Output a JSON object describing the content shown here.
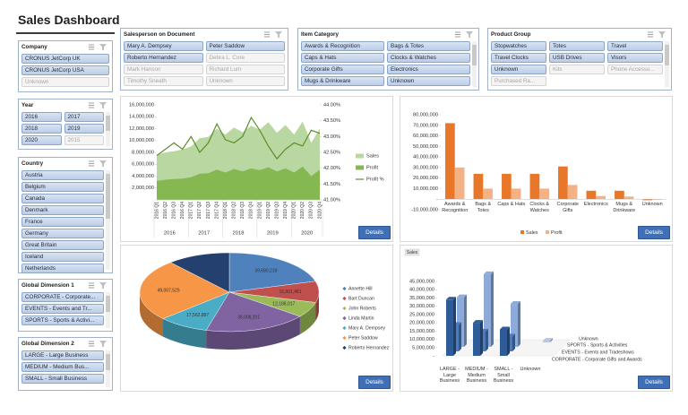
{
  "header": {
    "title": "Sales Dashboard"
  },
  "slicers": [
    {
      "title": "Company",
      "items": [
        {
          "text": "CRONUS JetCorp UK",
          "active": true
        },
        {
          "text": "CRONUS JetCorp USA",
          "active": true
        },
        {
          "text": "Unknown",
          "active": false
        }
      ]
    },
    {
      "title": "Year",
      "items": [
        {
          "text": "2016",
          "active": true
        },
        {
          "text": "2017",
          "active": true
        },
        {
          "text": "2018",
          "active": true
        },
        {
          "text": "2019",
          "active": true
        },
        {
          "text": "2020",
          "active": true
        },
        {
          "text": "2015",
          "active": false
        }
      ]
    },
    {
      "title": "Country",
      "items": [
        {
          "text": "Austria",
          "active": true
        },
        {
          "text": "Belgium",
          "active": true
        },
        {
          "text": "Canada",
          "active": true
        },
        {
          "text": "Denmark",
          "active": true
        },
        {
          "text": "France",
          "active": true
        },
        {
          "text": "Germany",
          "active": true
        },
        {
          "text": "Great Britain",
          "active": true
        },
        {
          "text": "Iceland",
          "active": true
        },
        {
          "text": "Netherlands",
          "active": true
        }
      ]
    },
    {
      "title": "Global Dimension 1",
      "items": [
        {
          "text": "CORPORATE - Corporate...",
          "active": true
        },
        {
          "text": "EVENTS - Events and Tr...",
          "active": true
        },
        {
          "text": "SPORTS - Sports & Activi...",
          "active": true
        }
      ]
    },
    {
      "title": "Global Dimension 2",
      "items": [
        {
          "text": "LARGE - Large Business",
          "active": true
        },
        {
          "text": "MEDIUM - Medium Bus...",
          "active": true
        },
        {
          "text": "SMALL - Small Business",
          "active": true
        }
      ]
    },
    {
      "title": "Salesperson on Document",
      "items": [
        {
          "text": "Mary A. Dempsey",
          "active": true
        },
        {
          "text": "Peter Saddow",
          "active": true
        },
        {
          "text": "Roberto Hernandez",
          "active": true
        },
        {
          "text": "Debra L. Core",
          "active": false
        },
        {
          "text": "Mark Hanson",
          "active": false
        },
        {
          "text": "Richard Lum",
          "active": false
        },
        {
          "text": "Timothy Sneath",
          "active": false
        },
        {
          "text": "Unknown",
          "active": false
        }
      ]
    },
    {
      "title": "Item Category",
      "items": [
        {
          "text": "Awards & Recognition",
          "active": true
        },
        {
          "text": "Bags & Totes",
          "active": true
        },
        {
          "text": "Caps & Hats",
          "active": true
        },
        {
          "text": "Clocks & Watches",
          "active": true
        },
        {
          "text": "Corporate Gifts",
          "active": true
        },
        {
          "text": "Electronics",
          "active": true
        },
        {
          "text": "Mugs & Drinkware",
          "active": true
        },
        {
          "text": "Unknown",
          "active": true
        }
      ]
    },
    {
      "title": "Product Group",
      "items": [
        {
          "text": "Stopwatches",
          "active": true
        },
        {
          "text": "Totes",
          "active": true
        },
        {
          "text": "Travel",
          "active": true
        },
        {
          "text": "Travel Clocks",
          "active": true
        },
        {
          "text": "USB Drives",
          "active": true
        },
        {
          "text": "Visors",
          "active": true
        },
        {
          "text": "Unknown",
          "active": true
        },
        {
          "text": "Kits",
          "active": false
        },
        {
          "text": "Phone Accesso...",
          "active": false
        },
        {
          "text": "Purchased Ra...",
          "active": false
        }
      ]
    }
  ],
  "chart_data": [
    {
      "type": "combo",
      "categories": [
        "2016 Q1",
        "2016 Q2",
        "2016 Q3",
        "2016 Q4",
        "2017 Q1",
        "2017 Q2",
        "2017 Q3",
        "2017 Q4",
        "2018 Q1",
        "2018 Q2",
        "2018 Q3",
        "2018 Q4",
        "2019 Q1",
        "2019 Q2",
        "2019 Q3",
        "2019 Q4",
        "2020 Q1",
        "2020 Q2",
        "2020 Q3",
        "2020 Q4"
      ],
      "category_groups": [
        "2016",
        "2017",
        "2018",
        "2019",
        "2020"
      ],
      "series": [
        {
          "name": "Sales",
          "type": "area",
          "color": "#b9d7a0",
          "values": [
            7600000,
            8000000,
            8200000,
            8500000,
            9000000,
            10400000,
            10600000,
            12000000,
            11000000,
            12200000,
            11400000,
            12500000,
            11800000,
            13100000,
            11300000,
            12600000,
            11000000,
            13200000,
            9600000,
            12000000
          ]
        },
        {
          "name": "Profit",
          "type": "area",
          "color": "#86b852",
          "values": [
            3200000,
            3400000,
            3500000,
            3600000,
            3800000,
            4400000,
            4500000,
            5100000,
            4600000,
            5200000,
            4800000,
            5300000,
            5000000,
            5500000,
            4800000,
            5300000,
            4600000,
            5600000,
            4000000,
            5100000
          ]
        },
        {
          "name": "Profit %",
          "type": "line",
          "axis": "y2",
          "color": "#5b8f2a",
          "values": [
            42.4,
            42.6,
            42.8,
            42.6,
            43.0,
            42.5,
            42.8,
            43.4,
            42.9,
            42.8,
            43.0,
            43.6,
            43.2,
            42.7,
            42.3,
            42.6,
            42.8,
            42.7,
            43.2,
            43.1
          ]
        }
      ],
      "ylim": [
        0,
        16000000
      ],
      "yticks": [
        {
          "value": 2000000,
          "label": "2,000,000"
        },
        {
          "value": 4000000,
          "label": "4,000,000"
        },
        {
          "value": 6000000,
          "label": "6,000,000"
        },
        {
          "value": 8000000,
          "label": "8,000,000"
        },
        {
          "value": 10000000,
          "label": "10,000,000"
        },
        {
          "value": 12000000,
          "label": "12,000,000"
        },
        {
          "value": 14000000,
          "label": "14,000,000"
        },
        {
          "value": 16000000,
          "label": "16,000,000"
        }
      ],
      "y2lim": [
        41,
        44
      ],
      "y2ticks": [
        {
          "value": 41,
          "label": "41.00%"
        },
        {
          "value": 41.5,
          "label": "41.50%"
        },
        {
          "value": 42,
          "label": "42.00%"
        },
        {
          "value": 42.5,
          "label": "42.50%"
        },
        {
          "value": 43,
          "label": "43.00%"
        },
        {
          "value": 43.5,
          "label": "43.50%"
        },
        {
          "value": 44,
          "label": "44.00%"
        }
      ],
      "button": "Details"
    },
    {
      "type": "bar",
      "categories": [
        "Awards & Recognition",
        "Bags & Totes",
        "Caps & Hats",
        "Clocks & Watches",
        "Corporate Gifts",
        "Electronics",
        "Mugs & Drinkware",
        "Unknown"
      ],
      "series": [
        {
          "name": "Sales",
          "color": "#e8772a",
          "values": [
            72000000,
            24000000,
            24000000,
            24000000,
            31000000,
            8000000,
            8000000,
            -1000000
          ]
        },
        {
          "name": "Profit",
          "color": "#f4b183",
          "values": [
            30000000,
            10000000,
            10000000,
            10000000,
            13500000,
            3000000,
            2500000,
            -500000
          ]
        }
      ],
      "ylim": [
        -10000000,
        80000000
      ],
      "yticks": [
        {
          "value": -10000000,
          "label": "-10,000,000"
        },
        {
          "value": 0,
          "label": "-"
        },
        {
          "value": 10000000,
          "label": "10,000,000"
        },
        {
          "value": 20000000,
          "label": "20,000,000"
        },
        {
          "value": 30000000,
          "label": "30,000,000"
        },
        {
          "value": 40000000,
          "label": "40,000,000"
        },
        {
          "value": 50000000,
          "label": "50,000,000"
        },
        {
          "value": 60000000,
          "label": "60,000,000"
        },
        {
          "value": 70000000,
          "label": "70,000,000"
        },
        {
          "value": 80000000,
          "label": "80,000,000"
        }
      ],
      "button": "Details"
    },
    {
      "type": "pie",
      "categories": [
        "Annette Hill",
        "Bart Duncan",
        "John Roberts",
        "Linda Martin",
        "Mary A. Dempsey",
        "Peter Saddow",
        "Roberto Hernandez"
      ],
      "values": [
        39680218,
        16801481,
        12188017,
        36008201,
        17562887,
        49007525,
        22000000
      ],
      "value_labels": [
        "39,680,218",
        "16,801,481",
        "12,188,017",
        "36,008,201",
        "17,562,887",
        "49,007,525",
        null
      ],
      "colors": [
        "#4f81bd",
        "#c0504d",
        "#9bbb59",
        "#8064a2",
        "#4bacc6",
        "#f79646",
        "#24406e"
      ],
      "button": "Details"
    },
    {
      "type": "bar3d",
      "value_field": "Sales",
      "categories": [
        "LARGE - Large Business",
        "MEDIUM - Medium Business",
        "SMALL - Small Business",
        "Unknown"
      ],
      "series": [
        {
          "name": "Unknown",
          "color": "#b4c7e7",
          "values": [
            null,
            null,
            null,
            1000000
          ]
        },
        {
          "name": "SPORTS - Sports & Activities",
          "color": "#8eaadb",
          "values": [
            30000000,
            44000000,
            26000000,
            null
          ]
        },
        {
          "name": "EVENTS - Events and Tradeshows",
          "color": "#4a7bc0",
          "values": [
            16000000,
            12000000,
            9000000,
            null
          ]
        },
        {
          "name": "CORPORATE - Corporate Gifts and Awards",
          "color": "#2e5c98",
          "values": [
            34000000,
            20000000,
            16000000,
            null
          ]
        }
      ],
      "ylim": [
        0,
        45000000
      ],
      "yticks": [
        {
          "value": 0,
          "label": "-"
        },
        {
          "value": 5000000,
          "label": "5,000,000"
        },
        {
          "value": 10000000,
          "label": "10,000,000"
        },
        {
          "value": 15000000,
          "label": "15,000,000"
        },
        {
          "value": 20000000,
          "label": "20,000,000"
        },
        {
          "value": 25000000,
          "label": "25,000,000"
        },
        {
          "value": 30000000,
          "label": "30,000,000"
        },
        {
          "value": 35000000,
          "label": "35,000,000"
        },
        {
          "value": 40000000,
          "label": "40,000,000"
        },
        {
          "value": 45000000,
          "label": "45,000,000"
        }
      ],
      "button": "Details"
    }
  ]
}
